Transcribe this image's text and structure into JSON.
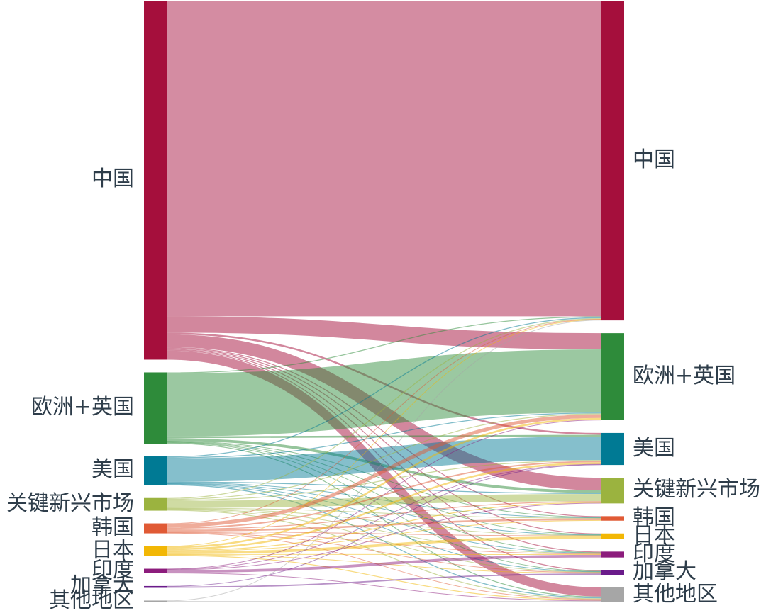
{
  "chart_data": {
    "type": "sankey",
    "left_nodes": [
      {
        "id": "cn",
        "label": "中国",
        "color": "#a50f3c"
      },
      {
        "id": "eu",
        "label": "欧洲+英国",
        "color": "#2e8b3a"
      },
      {
        "id": "us",
        "label": "美国",
        "color": "#007a94"
      },
      {
        "id": "em",
        "label": "关键新兴市场",
        "color": "#9bb33f"
      },
      {
        "id": "kr",
        "label": "韩国",
        "color": "#e05a35"
      },
      {
        "id": "jp",
        "label": "日本",
        "color": "#f2b705"
      },
      {
        "id": "in",
        "label": "印度",
        "color": "#8c1c7c"
      },
      {
        "id": "ca",
        "label": "加拿大",
        "color": "#6a1b8a"
      },
      {
        "id": "ot",
        "label": "其他地区",
        "color": "#a6a6a6"
      }
    ],
    "right_nodes": [
      {
        "id": "cn",
        "label": "中国",
        "color": "#a50f3c"
      },
      {
        "id": "eu",
        "label": "欧洲+英国",
        "color": "#2e8b3a"
      },
      {
        "id": "us",
        "label": "美国",
        "color": "#007a94"
      },
      {
        "id": "em",
        "label": "关键新兴市场",
        "color": "#9bb33f"
      },
      {
        "id": "kr",
        "label": "韩国",
        "color": "#e05a35"
      },
      {
        "id": "jp",
        "label": "日本",
        "color": "#f2b705"
      },
      {
        "id": "in",
        "label": "印度",
        "color": "#8c1c7c"
      },
      {
        "id": "ca",
        "label": "加拿大",
        "color": "#6a1b8a"
      },
      {
        "id": "ot",
        "label": "其他地区",
        "color": "#a6a6a6"
      }
    ],
    "flows": [
      {
        "source": "cn",
        "target": "cn",
        "value": 350
      },
      {
        "source": "cn",
        "target": "eu",
        "value": 18
      },
      {
        "source": "cn",
        "target": "us",
        "value": 2
      },
      {
        "source": "cn",
        "target": "em",
        "value": 14
      },
      {
        "source": "cn",
        "target": "kr",
        "value": 1
      },
      {
        "source": "cn",
        "target": "jp",
        "value": 1
      },
      {
        "source": "cn",
        "target": "in",
        "value": 1
      },
      {
        "source": "cn",
        "target": "ca",
        "value": 1
      },
      {
        "source": "cn",
        "target": "ot",
        "value": 10
      },
      {
        "source": "eu",
        "target": "cn",
        "value": 1
      },
      {
        "source": "eu",
        "target": "eu",
        "value": 70
      },
      {
        "source": "eu",
        "target": "us",
        "value": 2
      },
      {
        "source": "eu",
        "target": "em",
        "value": 3
      },
      {
        "source": "eu",
        "target": "kr",
        "value": 0.5
      },
      {
        "source": "eu",
        "target": "jp",
        "value": 0.5
      },
      {
        "source": "eu",
        "target": "in",
        "value": 0.5
      },
      {
        "source": "eu",
        "target": "ca",
        "value": 0.5
      },
      {
        "source": "eu",
        "target": "ot",
        "value": 1
      },
      {
        "source": "us",
        "target": "cn",
        "value": 1
      },
      {
        "source": "us",
        "target": "eu",
        "value": 1
      },
      {
        "source": "us",
        "target": "us",
        "value": 26
      },
      {
        "source": "us",
        "target": "em",
        "value": 1
      },
      {
        "source": "us",
        "target": "kr",
        "value": 0.5
      },
      {
        "source": "us",
        "target": "jp",
        "value": 0.5
      },
      {
        "source": "us",
        "target": "in",
        "value": 0.5
      },
      {
        "source": "us",
        "target": "ca",
        "value": 0.5
      },
      {
        "source": "us",
        "target": "ot",
        "value": 1
      },
      {
        "source": "em",
        "target": "cn",
        "value": 1
      },
      {
        "source": "em",
        "target": "eu",
        "value": 1
      },
      {
        "source": "em",
        "target": "us",
        "value": 1
      },
      {
        "source": "em",
        "target": "em",
        "value": 8
      },
      {
        "source": "em",
        "target": "kr",
        "value": 0.5
      },
      {
        "source": "em",
        "target": "jp",
        "value": 0.5
      },
      {
        "source": "em",
        "target": "in",
        "value": 0.5
      },
      {
        "source": "em",
        "target": "ca",
        "value": 0.5
      },
      {
        "source": "em",
        "target": "ot",
        "value": 1
      },
      {
        "source": "kr",
        "target": "cn",
        "value": 0.5
      },
      {
        "source": "kr",
        "target": "eu",
        "value": 4
      },
      {
        "source": "kr",
        "target": "us",
        "value": 1.5
      },
      {
        "source": "kr",
        "target": "em",
        "value": 1
      },
      {
        "source": "kr",
        "target": "kr",
        "value": 2
      },
      {
        "source": "kr",
        "target": "jp",
        "value": 0.5
      },
      {
        "source": "kr",
        "target": "in",
        "value": 0.5
      },
      {
        "source": "kr",
        "target": "ca",
        "value": 0.5
      },
      {
        "source": "kr",
        "target": "ot",
        "value": 0.5
      },
      {
        "source": "jp",
        "target": "cn",
        "value": 0.5
      },
      {
        "source": "jp",
        "target": "eu",
        "value": 2
      },
      {
        "source": "jp",
        "target": "us",
        "value": 2
      },
      {
        "source": "jp",
        "target": "em",
        "value": 1
      },
      {
        "source": "jp",
        "target": "kr",
        "value": 0.5
      },
      {
        "source": "jp",
        "target": "jp",
        "value": 3
      },
      {
        "source": "jp",
        "target": "in",
        "value": 0.5
      },
      {
        "source": "jp",
        "target": "ca",
        "value": 0.5
      },
      {
        "source": "jp",
        "target": "ot",
        "value": 1
      },
      {
        "source": "in",
        "target": "eu",
        "value": 0.5
      },
      {
        "source": "in",
        "target": "us",
        "value": 0.5
      },
      {
        "source": "in",
        "target": "em",
        "value": 0.5
      },
      {
        "source": "in",
        "target": "in",
        "value": 3
      },
      {
        "source": "in",
        "target": "ot",
        "value": 0.5
      },
      {
        "source": "ca",
        "target": "us",
        "value": 0.5
      },
      {
        "source": "ca",
        "target": "ca",
        "value": 1.5
      },
      {
        "source": "ot",
        "target": "cn",
        "value": 0.5
      },
      {
        "source": "ot",
        "target": "ot",
        "value": 1.5
      }
    ]
  }
}
